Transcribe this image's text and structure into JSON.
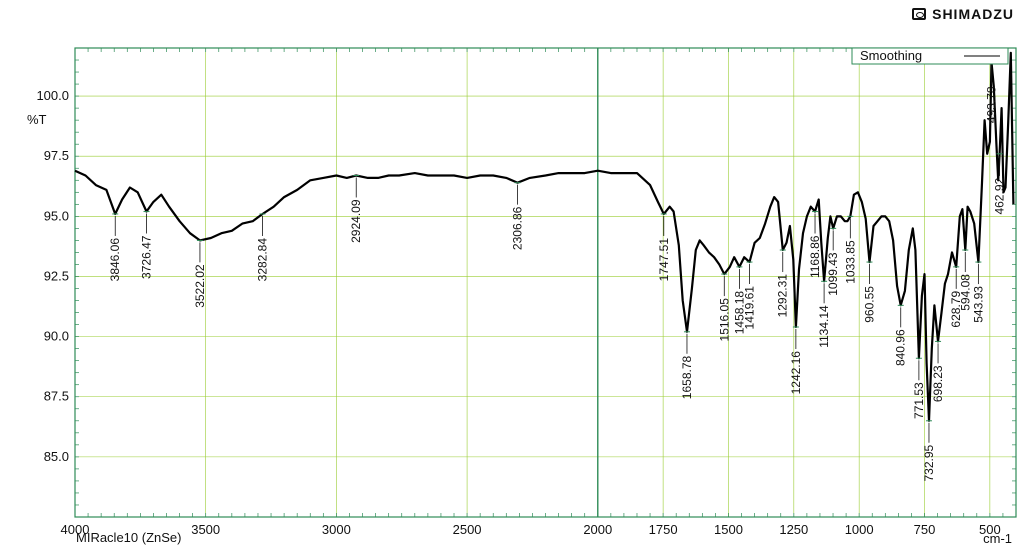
{
  "header": {
    "brand": "SHIMADZU"
  },
  "footer": {
    "instrument": "MIRacle10 (ZnSe)"
  },
  "chart_data": {
    "type": "line",
    "title": "",
    "xlabel": "cm-1",
    "ylabel": "%T",
    "xlim": [
      4000,
      400
    ],
    "ylim": [
      82.5,
      102
    ],
    "x_ticks": [
      4000,
      3500,
      3000,
      2500,
      2000,
      1750,
      1500,
      1250,
      1000,
      750,
      500
    ],
    "y_ticks": [
      85.0,
      87.5,
      90.0,
      92.5,
      95.0,
      97.5,
      100.0
    ],
    "grid": true,
    "legend": {
      "entries": [
        "Smoothing"
      ],
      "position": "top-right"
    },
    "colors": {
      "line": "#000000",
      "axes": "#2e8b57",
      "grid": "#9acd32",
      "marker": "#2e8b57"
    },
    "series": [
      {
        "name": "Smoothing",
        "x": [
          4000,
          3960,
          3920,
          3880,
          3846.06,
          3820,
          3790,
          3760,
          3726.47,
          3700,
          3670,
          3640,
          3600,
          3560,
          3522.02,
          3480,
          3440,
          3400,
          3360,
          3320,
          3282.84,
          3240,
          3200,
          3150,
          3100,
          3050,
          3000,
          2960,
          2924.09,
          2880,
          2840,
          2800,
          2760,
          2700,
          2650,
          2600,
          2550,
          2500,
          2450,
          2400,
          2350,
          2306.86,
          2260,
          2200,
          2150,
          2100,
          2050,
          2000,
          1950,
          1900,
          1850,
          1800,
          1770,
          1747.51,
          1725,
          1710,
          1690,
          1675,
          1658.78,
          1640,
          1625,
          1610,
          1595,
          1575,
          1555,
          1535,
          1516.05,
          1495,
          1478,
          1458.18,
          1440,
          1419.61,
          1400,
          1380,
          1360,
          1340,
          1325,
          1310,
          1292.31,
          1278,
          1265,
          1252,
          1242.16,
          1230,
          1215,
          1200,
          1185,
          1168.86,
          1155,
          1145,
          1134.14,
          1120,
          1110,
          1099.43,
          1085,
          1070,
          1055,
          1045,
          1033.85,
          1020,
          1005,
          990,
          975,
          960.55,
          945,
          930,
          915,
          900,
          885,
          870,
          855,
          840.96,
          825,
          810,
          795,
          785,
          771.53,
          760,
          750,
          742,
          732.95,
          722,
          712,
          698.23,
          685,
          672,
          660,
          645,
          628.79,
          615,
          605,
          594.08,
          585,
          575,
          560,
          543.93,
          530,
          520,
          510,
          500,
          493.78,
          485,
          475,
          468,
          462.92,
          455,
          448,
          440,
          430,
          420,
          410
        ],
        "y": [
          96.9,
          96.7,
          96.3,
          96.1,
          95.1,
          95.7,
          96.2,
          96.0,
          95.2,
          95.6,
          95.9,
          95.4,
          94.8,
          94.3,
          94.0,
          94.1,
          94.3,
          94.4,
          94.7,
          94.8,
          95.1,
          95.4,
          95.8,
          96.1,
          96.5,
          96.6,
          96.7,
          96.6,
          96.7,
          96.6,
          96.6,
          96.7,
          96.7,
          96.8,
          96.7,
          96.7,
          96.7,
          96.6,
          96.7,
          96.7,
          96.6,
          96.4,
          96.6,
          96.7,
          96.8,
          96.8,
          96.8,
          96.9,
          96.8,
          96.8,
          96.8,
          96.3,
          95.6,
          95.1,
          95.4,
          95.2,
          93.8,
          91.5,
          90.2,
          92.0,
          93.6,
          94.0,
          93.8,
          93.5,
          93.3,
          93.0,
          92.6,
          92.9,
          93.3,
          92.9,
          93.3,
          93.1,
          93.9,
          94.1,
          94.7,
          95.4,
          95.8,
          95.6,
          93.6,
          93.9,
          94.6,
          93.2,
          90.4,
          92.8,
          94.3,
          95.0,
          95.4,
          95.2,
          95.7,
          93.9,
          92.3,
          94.1,
          95.0,
          94.5,
          95.0,
          95.0,
          94.8,
          94.8,
          95.0,
          95.9,
          96.0,
          95.6,
          94.9,
          93.1,
          94.6,
          94.8,
          95.0,
          95.0,
          94.8,
          94.0,
          92.1,
          91.3,
          91.9,
          93.6,
          94.5,
          93.6,
          89.1,
          91.7,
          92.6,
          88.9,
          86.5,
          89.5,
          91.3,
          89.8,
          91.0,
          92.2,
          92.6,
          93.5,
          92.9,
          95.0,
          95.3,
          93.6,
          95.4,
          95.2,
          94.7,
          93.1,
          96.4,
          99.0,
          97.6,
          98.1,
          101.4,
          100.4,
          98.0,
          96.5,
          97.6,
          99.5,
          96.0,
          96.2,
          98.9,
          101.8,
          95.5
        ]
      }
    ],
    "peak_labels": [
      {
        "x": 3846.06,
        "label": "3846.06"
      },
      {
        "x": 3726.47,
        "label": "3726.47"
      },
      {
        "x": 3522.02,
        "label": "3522.02"
      },
      {
        "x": 3282.84,
        "label": "3282.84"
      },
      {
        "x": 2924.09,
        "label": "2924.09"
      },
      {
        "x": 2306.86,
        "label": "2306.86"
      },
      {
        "x": 1747.51,
        "label": "1747.51"
      },
      {
        "x": 1658.78,
        "label": "1658.78"
      },
      {
        "x": 1516.05,
        "label": "1516.05"
      },
      {
        "x": 1458.18,
        "label": "1458.18"
      },
      {
        "x": 1419.61,
        "label": "1419.61"
      },
      {
        "x": 1292.31,
        "label": "1292.31"
      },
      {
        "x": 1242.16,
        "label": "1242.16"
      },
      {
        "x": 1168.86,
        "label": "1168.86"
      },
      {
        "x": 1134.14,
        "label": "1134.14"
      },
      {
        "x": 1099.43,
        "label": "1099.43"
      },
      {
        "x": 1033.85,
        "label": "1033.85"
      },
      {
        "x": 960.55,
        "label": "960.55"
      },
      {
        "x": 840.96,
        "label": "840.96"
      },
      {
        "x": 771.53,
        "label": "771.53"
      },
      {
        "x": 732.95,
        "label": "732.95"
      },
      {
        "x": 698.23,
        "label": "698.23"
      },
      {
        "x": 628.79,
        "label": "628.79"
      },
      {
        "x": 594.08,
        "label": "594.08"
      },
      {
        "x": 543.93,
        "label": "543.93"
      },
      {
        "x": 493.78,
        "label": "493.78"
      },
      {
        "x": 462.92,
        "label": "462.92"
      }
    ]
  }
}
